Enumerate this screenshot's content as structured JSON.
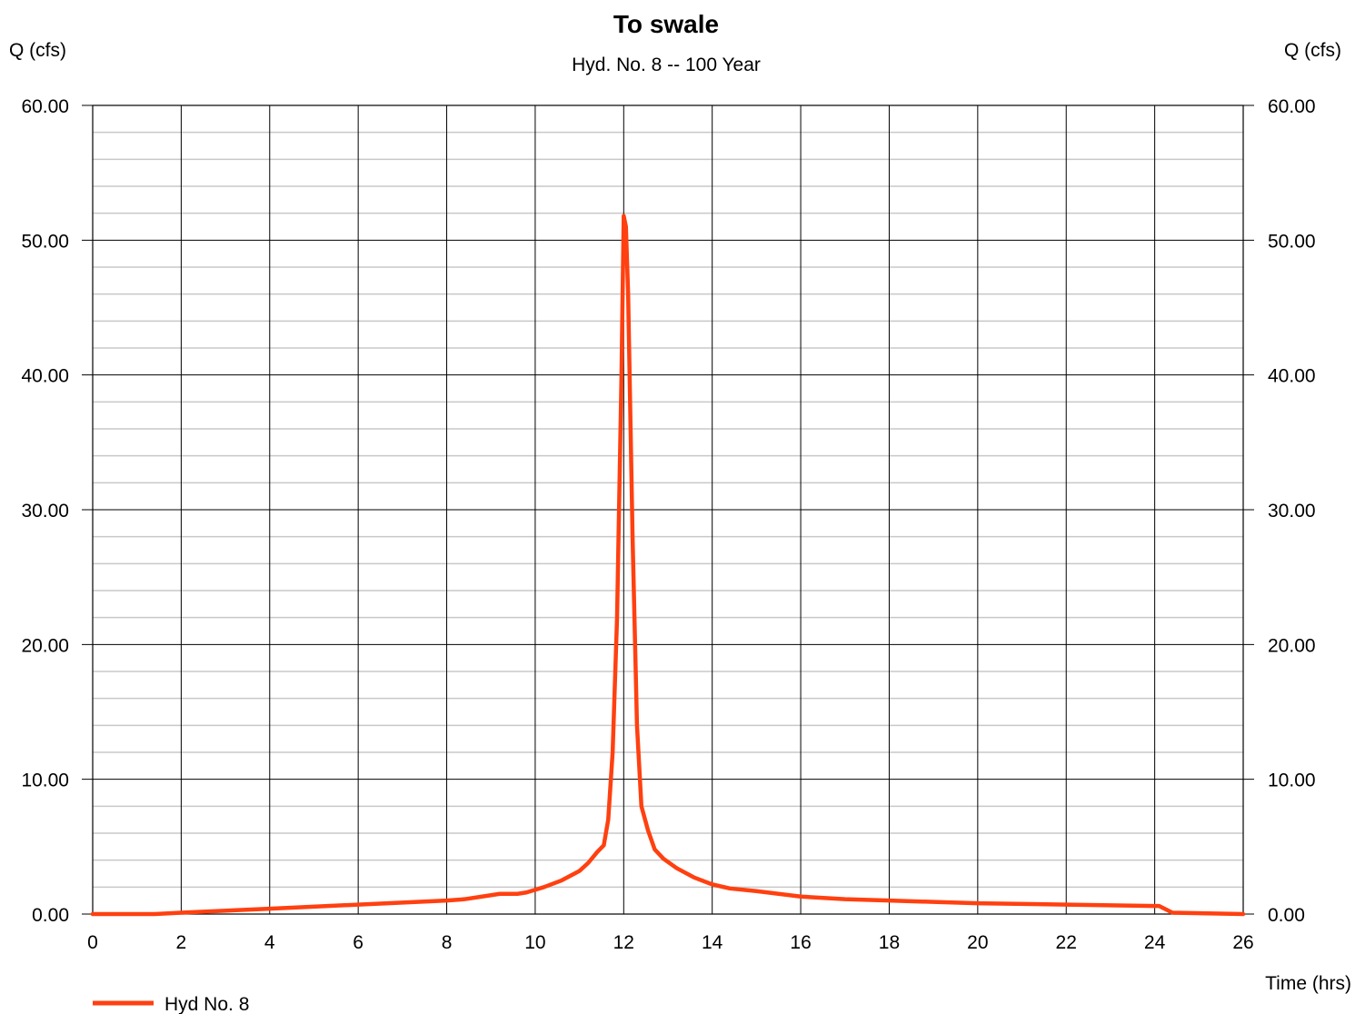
{
  "chart_data": {
    "type": "line",
    "title": "To swale",
    "subtitle": "Hyd. No. 8 -- 100 Year",
    "ylabel_left": "Q (cfs)",
    "ylabel_right": "Q (cfs)",
    "xlabel": "Time (hrs)",
    "xlim": [
      0,
      26
    ],
    "ylim": [
      0,
      60
    ],
    "x_ticks": [
      "0",
      "2",
      "4",
      "6",
      "8",
      "10",
      "12",
      "14",
      "16",
      "18",
      "20",
      "22",
      "24",
      "26"
    ],
    "y_ticks": [
      "0.00",
      "10.00",
      "20.00",
      "30.00",
      "40.00",
      "50.00",
      "60.00"
    ],
    "grid": true,
    "minor_grid_step": 2,
    "legend_position": "bottom-left",
    "series": [
      {
        "name": "Hyd No. 8",
        "color": "#ff4010",
        "x": [
          0,
          1.4,
          2,
          4,
          6,
          8,
          8.4,
          9,
          9.2,
          9.6,
          9.8,
          10.2,
          10.6,
          11,
          11.2,
          11.4,
          11.55,
          11.65,
          11.75,
          11.85,
          11.95,
          12.0,
          12.05,
          12.1,
          12.2,
          12.3,
          12.4,
          12.55,
          12.7,
          12.9,
          13.2,
          13.6,
          14,
          14.4,
          15,
          16,
          17,
          18,
          19,
          20,
          22,
          24,
          24.1,
          24.4,
          26
        ],
        "y": [
          0,
          0,
          0.1,
          0.4,
          0.7,
          1.0,
          1.1,
          1.4,
          1.5,
          1.5,
          1.6,
          2.0,
          2.5,
          3.2,
          3.8,
          4.6,
          5.1,
          7.0,
          12.0,
          22.0,
          40.0,
          51.8,
          51.0,
          46.0,
          28.0,
          14.0,
          8.0,
          6.2,
          4.8,
          4.1,
          3.4,
          2.7,
          2.2,
          1.9,
          1.7,
          1.3,
          1.1,
          1.0,
          0.9,
          0.8,
          0.7,
          0.6,
          0.6,
          0.1,
          0
        ]
      }
    ]
  }
}
